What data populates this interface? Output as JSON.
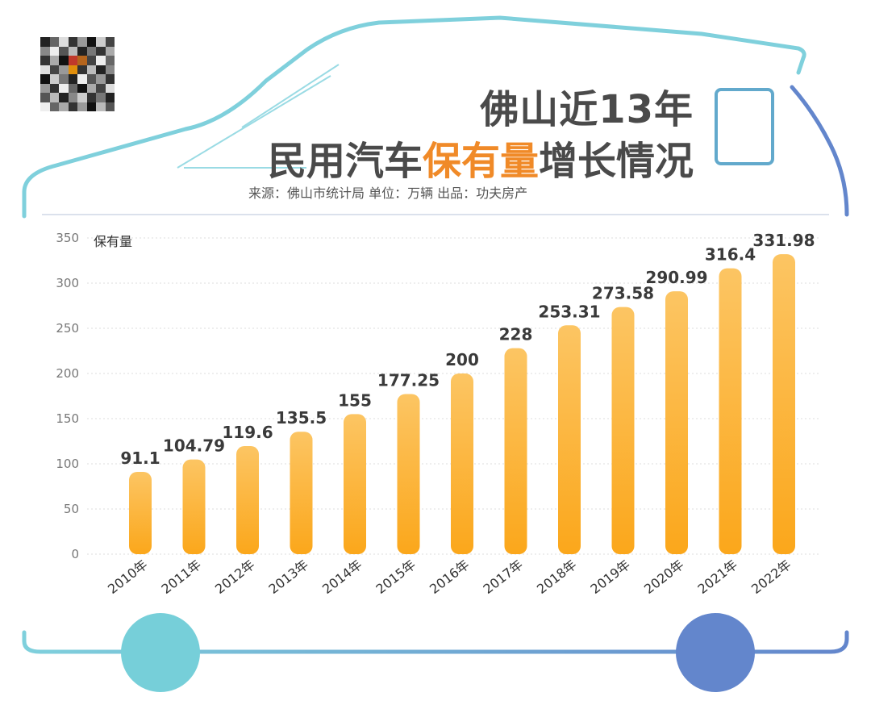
{
  "header": {
    "title_line1": "佛山近13年",
    "title_line2_before": "民用汽车",
    "title_line2_highlight": "保有量",
    "title_line2_after": "增长情况",
    "source": "来源：佛山市统计局 单位：万辆 出品：功夫房产"
  },
  "colors": {
    "bar": "#fbb234",
    "bar_top": "#fcc463",
    "highlight": "#f08a28",
    "title": "#4a4a4a",
    "outline_teal": "#7fd0dc",
    "outline_blue": "#6386cc"
  },
  "chart_data": {
    "type": "bar",
    "categories": [
      "2010年",
      "2011年",
      "2012年",
      "2013年",
      "2014年",
      "2015年",
      "2016年",
      "2017年",
      "2018年",
      "2019年",
      "2020年",
      "2021年",
      "2022年"
    ],
    "values": [
      91.1,
      104.79,
      119.6,
      135.5,
      155,
      177.25,
      200,
      228,
      253.31,
      273.58,
      290.99,
      316.4,
      331.98
    ],
    "value_labels": [
      "91.1",
      "104.79",
      "119.6",
      "135.5",
      "155",
      "177.25",
      "200",
      "228",
      "253.31",
      "273.58",
      "290.99",
      "316.4",
      "331.98"
    ],
    "ylabel": "保有量",
    "ylim": [
      0,
      350
    ],
    "yticks": [
      0,
      50,
      100,
      150,
      200,
      250,
      300,
      350
    ],
    "grid": true
  }
}
